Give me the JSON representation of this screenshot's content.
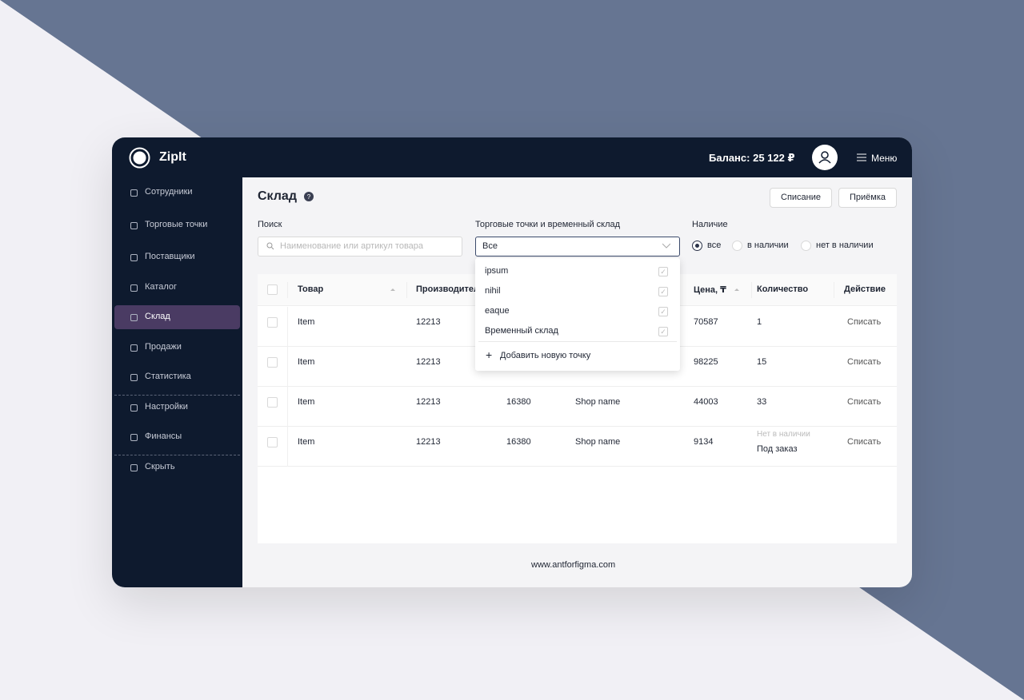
{
  "header": {
    "logo": "ZipIt",
    "balance": "Баланс: 25 122 ₽",
    "menu": "Меню"
  },
  "sidebar": {
    "items": [
      "Сотрудники",
      "Торговые точки",
      "Поставщики",
      "Каталог",
      "Склад",
      "Продажи",
      "Статистика",
      "Настройки",
      "Финансы",
      "Скрыть"
    ]
  },
  "page": {
    "title": "Склад",
    "buttons": [
      "Списание",
      "Приёмка"
    ]
  },
  "filters": {
    "search": {
      "label": "Поиск",
      "placeholder": "Наименование или артикул товара"
    },
    "shops": {
      "label": "Торговые точки и временный склад",
      "value": "Все"
    },
    "availability": {
      "label": "Наличие",
      "options": [
        "все",
        "в наличии",
        "нет в наличии"
      ]
    }
  },
  "table": {
    "columns": [
      "Товар",
      "Производитель",
      null,
      null,
      "Цена, ₸",
      "Количество",
      "Действие"
    ],
    "rows": [
      {
        "name": "Item",
        "maker": "12213",
        "code": null,
        "shop": null,
        "price": "70587",
        "qty": "1",
        "action": "Списать"
      },
      {
        "name": "Item",
        "maker": "12213",
        "code": null,
        "shop": null,
        "price": "98225",
        "qty": "15",
        "action": "Списать"
      },
      {
        "name": "Item",
        "maker": "12213",
        "code": "16380",
        "shop": "Shop name",
        "price": "44003",
        "qty": "33",
        "action": "Списать"
      },
      {
        "name": "Item",
        "maker": "12213",
        "code": "16380",
        "shop": "Shop name",
        "price": "9134",
        "qty_note": "Нет в наличии",
        "qty": "Под заказ",
        "action": "Списать"
      }
    ]
  },
  "dropdown": {
    "options": [
      "ipsum",
      "nihil",
      "eaque",
      "Временный склад"
    ],
    "add": "Добавить новую точку"
  },
  "footer": "www.antforfigma.com"
}
